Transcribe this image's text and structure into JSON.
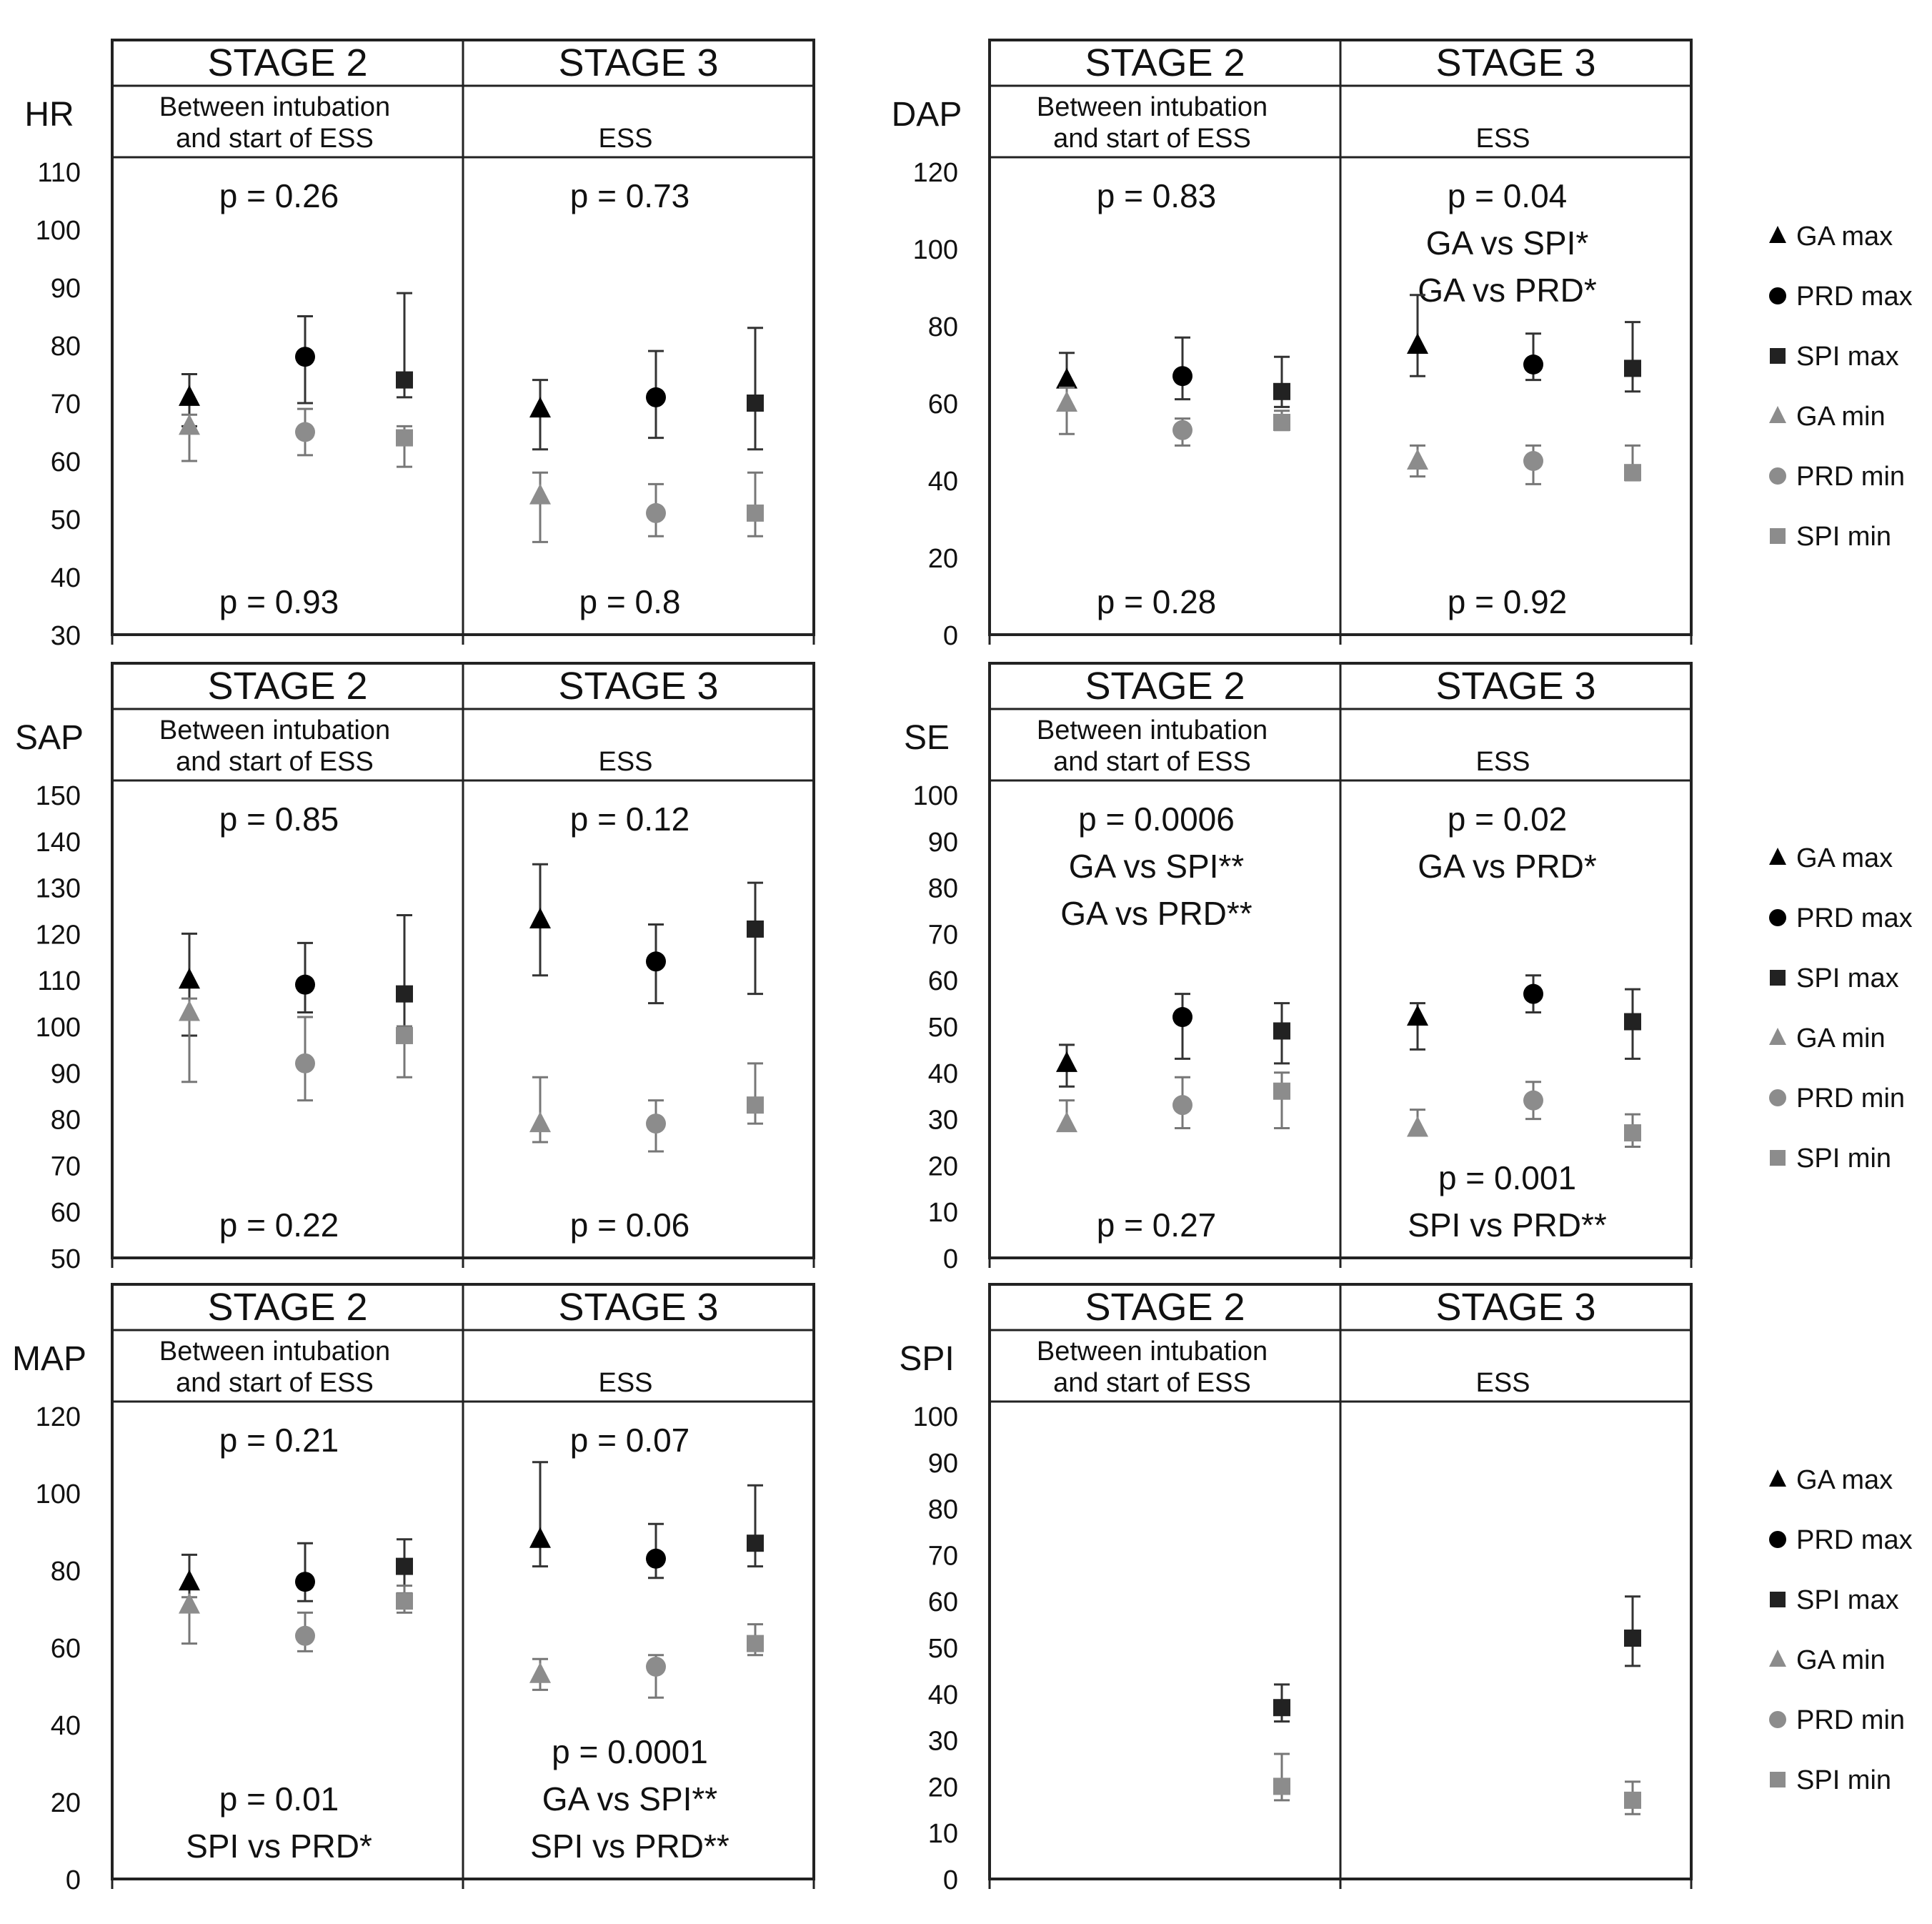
{
  "legend": [
    {
      "label": "GA max",
      "marker": "triangle",
      "color": "#000000"
    },
    {
      "label": "PRD max",
      "marker": "circle",
      "color": "#000000"
    },
    {
      "label": "SPI max",
      "marker": "square",
      "color": "#222222"
    },
    {
      "label": "GA min",
      "marker": "triangle",
      "color": "#8c8c8c"
    },
    {
      "label": "PRD min",
      "marker": "circle",
      "color": "#8c8c8c"
    },
    {
      "label": "SPI min",
      "marker": "square",
      "color": "#8c8c8c"
    }
  ],
  "chart_data": [
    {
      "type": "scatter",
      "ylabel": "HR",
      "ylim": [
        30,
        110
      ],
      "yticks": [
        30,
        40,
        50,
        60,
        70,
        80,
        90,
        100,
        110
      ],
      "stage2": {
        "title": "STAGE 2",
        "subtitle": [
          "Between intubation",
          "and start of ESS"
        ],
        "p_top": [
          "p = 0.26"
        ],
        "p_bottom": [
          "p = 0.93"
        ]
      },
      "stage3": {
        "title": "STAGE 3",
        "subtitle": [
          "",
          "ESS"
        ],
        "p_top": [
          "p = 0.73"
        ],
        "p_bottom": [
          "p = 0.8"
        ]
      },
      "series": [
        {
          "name": "GA max",
          "stage2": {
            "y": 71,
            "lo": 66,
            "hi": 75
          },
          "stage3": {
            "y": 69,
            "lo": 62,
            "hi": 74
          }
        },
        {
          "name": "PRD max",
          "stage2": {
            "y": 78,
            "lo": 70,
            "hi": 85
          },
          "stage3": {
            "y": 71,
            "lo": 64,
            "hi": 79
          }
        },
        {
          "name": "SPI max",
          "stage2": {
            "y": 74,
            "lo": 71,
            "hi": 89
          },
          "stage3": {
            "y": 70,
            "lo": 62,
            "hi": 83
          }
        },
        {
          "name": "GA min",
          "stage2": {
            "y": 66,
            "lo": 60,
            "hi": 68
          },
          "stage3": {
            "y": 54,
            "lo": 46,
            "hi": 58
          }
        },
        {
          "name": "PRD min",
          "stage2": {
            "y": 65,
            "lo": 61,
            "hi": 69
          },
          "stage3": {
            "y": 51,
            "lo": 47,
            "hi": 56
          }
        },
        {
          "name": "SPI min",
          "stage2": {
            "y": 64,
            "lo": 59,
            "hi": 66
          },
          "stage3": {
            "y": 51,
            "lo": 47,
            "hi": 58
          }
        }
      ]
    },
    {
      "type": "scatter",
      "ylabel": "DAP",
      "ylim": [
        0,
        120
      ],
      "yticks": [
        0,
        20,
        40,
        60,
        80,
        100,
        120
      ],
      "stage2": {
        "title": "STAGE 2",
        "subtitle": [
          "Between intubation",
          "and start of ESS"
        ],
        "p_top": [
          "p = 0.83"
        ],
        "p_bottom": [
          "p = 0.28"
        ]
      },
      "stage3": {
        "title": "STAGE 3",
        "subtitle": [
          "",
          "ESS"
        ],
        "p_top": [
          "p = 0.04",
          "GA vs SPI*",
          "GA vs PRD*"
        ],
        "p_bottom": [
          "p = 0.92"
        ]
      },
      "series": [
        {
          "name": "GA max",
          "stage2": {
            "y": 66,
            "lo": 59,
            "hi": 73
          },
          "stage3": {
            "y": 75,
            "lo": 67,
            "hi": 88
          }
        },
        {
          "name": "PRD max",
          "stage2": {
            "y": 67,
            "lo": 61,
            "hi": 77
          },
          "stage3": {
            "y": 70,
            "lo": 66,
            "hi": 78
          }
        },
        {
          "name": "SPI max",
          "stage2": {
            "y": 63,
            "lo": 59,
            "hi": 72
          },
          "stage3": {
            "y": 69,
            "lo": 63,
            "hi": 81
          }
        },
        {
          "name": "GA min",
          "stage2": {
            "y": 60,
            "lo": 52,
            "hi": 64
          },
          "stage3": {
            "y": 45,
            "lo": 41,
            "hi": 49
          }
        },
        {
          "name": "PRD min",
          "stage2": {
            "y": 53,
            "lo": 49,
            "hi": 56
          },
          "stage3": {
            "y": 45,
            "lo": 39,
            "hi": 49
          }
        },
        {
          "name": "SPI min",
          "stage2": {
            "y": 55,
            "lo": 53,
            "hi": 58
          },
          "stage3": {
            "y": 42,
            "lo": 40,
            "hi": 49
          }
        }
      ]
    },
    {
      "type": "scatter",
      "ylabel": "SAP",
      "ylim": [
        50,
        150
      ],
      "yticks": [
        50,
        60,
        70,
        80,
        90,
        100,
        110,
        120,
        130,
        140,
        150
      ],
      "stage2": {
        "title": "STAGE 2",
        "subtitle": [
          "Between intubation",
          "and start of ESS"
        ],
        "p_top": [
          "p = 0.85"
        ],
        "p_bottom": [
          "p = 0.22"
        ]
      },
      "stage3": {
        "title": "STAGE 3",
        "subtitle": [
          "",
          "ESS"
        ],
        "p_top": [
          "p = 0.12"
        ],
        "p_bottom": [
          "p = 0.06"
        ]
      },
      "series": [
        {
          "name": "GA max",
          "stage2": {
            "y": 110,
            "lo": 98,
            "hi": 120
          },
          "stage3": {
            "y": 123,
            "lo": 111,
            "hi": 135
          }
        },
        {
          "name": "PRD max",
          "stage2": {
            "y": 109,
            "lo": 103,
            "hi": 118
          },
          "stage3": {
            "y": 114,
            "lo": 105,
            "hi": 122
          }
        },
        {
          "name": "SPI max",
          "stage2": {
            "y": 107,
            "lo": 99,
            "hi": 124
          },
          "stage3": {
            "y": 121,
            "lo": 107,
            "hi": 131
          }
        },
        {
          "name": "GA min",
          "stage2": {
            "y": 103,
            "lo": 88,
            "hi": 106
          },
          "stage3": {
            "y": 79,
            "lo": 75,
            "hi": 89
          }
        },
        {
          "name": "PRD min",
          "stage2": {
            "y": 92,
            "lo": 84,
            "hi": 102
          },
          "stage3": {
            "y": 79,
            "lo": 73,
            "hi": 84
          }
        },
        {
          "name": "SPI min",
          "stage2": {
            "y": 98,
            "lo": 89,
            "hi": 100
          },
          "stage3": {
            "y": 83,
            "lo": 79,
            "hi": 92
          }
        }
      ]
    },
    {
      "type": "scatter",
      "ylabel": "SE",
      "ylim": [
        0,
        100
      ],
      "yticks": [
        0,
        10,
        20,
        30,
        40,
        50,
        60,
        70,
        80,
        90,
        100
      ],
      "stage2": {
        "title": "STAGE 2",
        "subtitle": [
          "Between intubation",
          "and start of ESS"
        ],
        "p_top": [
          "p = 0.0006",
          "GA vs SPI**",
          "GA vs PRD**"
        ],
        "p_bottom": [
          "p = 0.27"
        ]
      },
      "stage3": {
        "title": "STAGE 3",
        "subtitle": [
          "",
          "ESS"
        ],
        "p_top": [
          "p = 0.02",
          "GA vs PRD*"
        ],
        "p_bottom": [
          "p = 0.001",
          "SPI vs PRD**"
        ]
      },
      "series": [
        {
          "name": "GA max",
          "stage2": {
            "y": 42,
            "lo": 37,
            "hi": 46
          },
          "stage3": {
            "y": 52,
            "lo": 45,
            "hi": 55
          }
        },
        {
          "name": "PRD max",
          "stage2": {
            "y": 52,
            "lo": 43,
            "hi": 57
          },
          "stage3": {
            "y": 57,
            "lo": 53,
            "hi": 61
          }
        },
        {
          "name": "SPI max",
          "stage2": {
            "y": 49,
            "lo": 42,
            "hi": 55
          },
          "stage3": {
            "y": 51,
            "lo": 43,
            "hi": 58
          }
        },
        {
          "name": "GA min",
          "stage2": {
            "y": 29,
            "lo": 28,
            "hi": 34
          },
          "stage3": {
            "y": 28,
            "lo": 27,
            "hi": 32
          }
        },
        {
          "name": "PRD min",
          "stage2": {
            "y": 33,
            "lo": 28,
            "hi": 39
          },
          "stage3": {
            "y": 34,
            "lo": 30,
            "hi": 38
          }
        },
        {
          "name": "SPI min",
          "stage2": {
            "y": 36,
            "lo": 28,
            "hi": 40
          },
          "stage3": {
            "y": 27,
            "lo": 24,
            "hi": 31
          }
        }
      ]
    },
    {
      "type": "scatter",
      "ylabel": "MAP",
      "ylim": [
        0,
        120
      ],
      "yticks": [
        0,
        20,
        40,
        60,
        80,
        100,
        120
      ],
      "stage2": {
        "title": "STAGE 2",
        "subtitle": [
          "Between intubation",
          "and start of ESS"
        ],
        "p_top": [
          "p = 0.21"
        ],
        "p_bottom": [
          "p = 0.01",
          "SPI vs PRD*"
        ]
      },
      "stage3": {
        "title": "STAGE 3",
        "subtitle": [
          "",
          "ESS"
        ],
        "p_top": [
          "p = 0.07"
        ],
        "p_bottom": [
          "p = 0.0001",
          "GA vs SPI**",
          "SPI vs PRD**"
        ]
      },
      "series": [
        {
          "name": "GA max",
          "stage2": {
            "y": 77,
            "lo": 70,
            "hi": 84
          },
          "stage3": {
            "y": 88,
            "lo": 81,
            "hi": 108
          }
        },
        {
          "name": "PRD max",
          "stage2": {
            "y": 77,
            "lo": 72,
            "hi": 87
          },
          "stage3": {
            "y": 83,
            "lo": 78,
            "hi": 92
          }
        },
        {
          "name": "SPI max",
          "stage2": {
            "y": 81,
            "lo": 74,
            "hi": 88
          },
          "stage3": {
            "y": 87,
            "lo": 81,
            "hi": 102
          }
        },
        {
          "name": "GA min",
          "stage2": {
            "y": 71,
            "lo": 61,
            "hi": 73
          },
          "stage3": {
            "y": 53,
            "lo": 49,
            "hi": 57
          }
        },
        {
          "name": "PRD min",
          "stage2": {
            "y": 63,
            "lo": 59,
            "hi": 69
          },
          "stage3": {
            "y": 55,
            "lo": 47,
            "hi": 58
          }
        },
        {
          "name": "SPI min",
          "stage2": {
            "y": 72,
            "lo": 69,
            "hi": 76
          },
          "stage3": {
            "y": 61,
            "lo": 58,
            "hi": 66
          }
        }
      ]
    },
    {
      "type": "scatter",
      "ylabel": "SPI",
      "ylim": [
        0,
        100
      ],
      "yticks": [
        0,
        10,
        20,
        30,
        40,
        50,
        60,
        70,
        80,
        90,
        100
      ],
      "stage2": {
        "title": "STAGE 2",
        "subtitle": [
          "Between intubation",
          "and start of ESS"
        ],
        "p_top": [],
        "p_bottom": []
      },
      "stage3": {
        "title": "STAGE 3",
        "subtitle": [
          "",
          "ESS"
        ],
        "p_top": [],
        "p_bottom": []
      },
      "series": [
        {
          "name": "SPI max",
          "stage2": {
            "y": 37,
            "lo": 34,
            "hi": 42
          },
          "stage3": {
            "y": 52,
            "lo": 46,
            "hi": 61
          }
        },
        {
          "name": "SPI min",
          "stage2": {
            "y": 20,
            "lo": 17,
            "hi": 27
          },
          "stage3": {
            "y": 17,
            "lo": 14,
            "hi": 21
          }
        }
      ]
    }
  ]
}
